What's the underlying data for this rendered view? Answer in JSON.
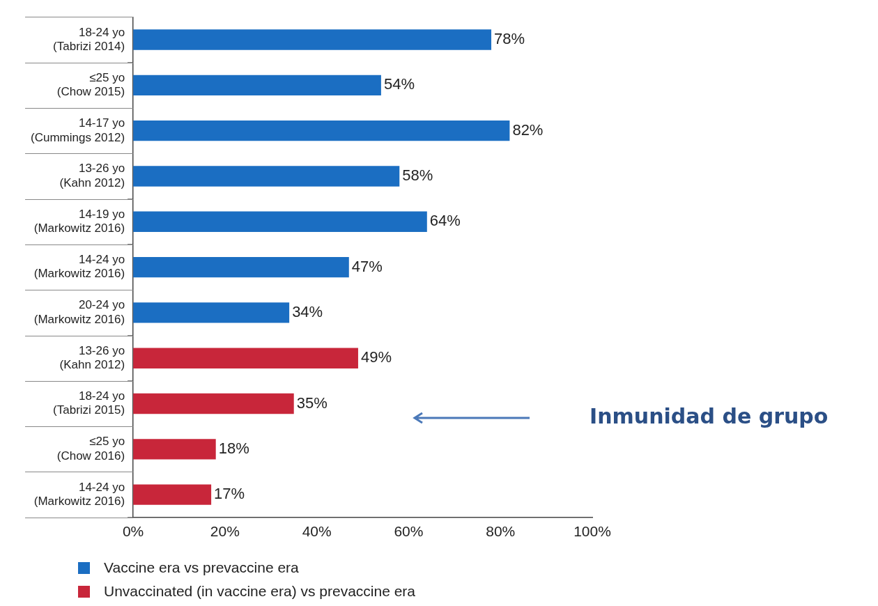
{
  "chart_data": {
    "type": "bar",
    "orientation": "horizontal",
    "categories": [
      "18-24 yo\n(Tabrizi 2014)",
      "≤25 yo\n(Chow 2015)",
      "14-17 yo\n(Cummings 2012)",
      "13-26 yo\n(Kahn 2012)",
      "14-19 yo\n(Markowitz 2016)",
      "14-24 yo\n(Markowitz 2016)",
      "20-24 yo\n(Markowitz 2016)",
      "13-26 yo\n(Kahn 2012)",
      "18-24 yo\n(Tabrizi 2015)",
      "≤25 yo\n(Chow 2016)",
      "14-24 yo\n(Markowitz 2016)"
    ],
    "series": [
      {
        "name": "Vaccine era vs prevaccine era",
        "color": "#1b6ec2",
        "values": [
          78,
          54,
          82,
          58,
          64,
          47,
          34,
          null,
          null,
          null,
          null
        ],
        "value_labels": [
          "78%",
          "54%",
          "82%",
          "58%",
          "64%",
          "47%",
          "34%",
          null,
          null,
          null,
          null
        ]
      },
      {
        "name": "Unvaccinated (in vaccine era) vs prevaccine era",
        "color": "#c8263a",
        "values": [
          null,
          null,
          null,
          null,
          null,
          null,
          null,
          49,
          35,
          18,
          17
        ],
        "value_labels": [
          null,
          null,
          null,
          null,
          null,
          null,
          null,
          "49%",
          "35%",
          "18%",
          "17%"
        ]
      }
    ],
    "xlim": [
      0,
      100
    ],
    "xticks": [
      {
        "value": 0,
        "label": "0%"
      },
      {
        "value": 20,
        "label": "20%"
      },
      {
        "value": 40,
        "label": "40%"
      },
      {
        "value": 60,
        "label": "60%"
      },
      {
        "value": 80,
        "label": "80%"
      },
      {
        "value": 100,
        "label": "100%"
      }
    ],
    "grid": false,
    "legend": "bottom",
    "annotations": [
      "Inmunidad de grupo"
    ]
  }
}
